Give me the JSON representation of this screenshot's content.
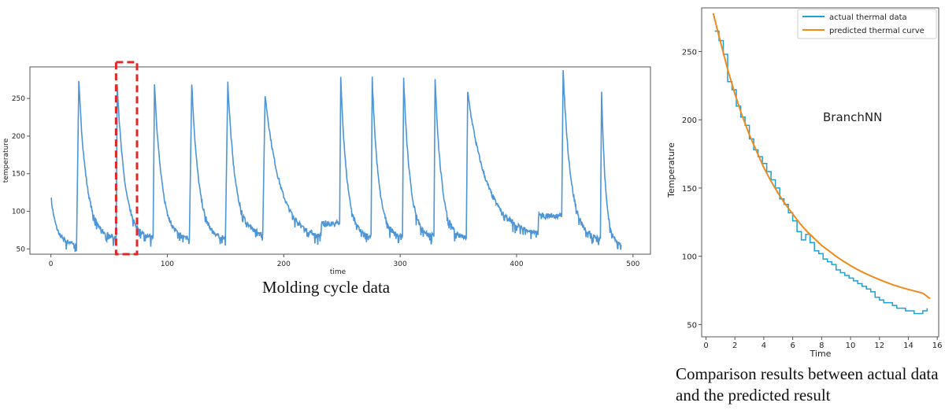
{
  "chart_data": [
    {
      "type": "line",
      "title": "",
      "xlabel": "time",
      "ylabel": "temperature",
      "xlim": [
        -18,
        515
      ],
      "ylim": [
        43,
        292
      ],
      "xticks": [
        0,
        100,
        200,
        300,
        400,
        500
      ],
      "yticks": [
        50,
        100,
        150,
        200,
        250
      ],
      "grid": false,
      "line_color": "#4c95d6",
      "cycles": [
        {
          "start": 0,
          "peak": 120,
          "end": 22,
          "base": 57
        },
        {
          "start": 24,
          "peak": 271,
          "end": 56,
          "base": 64
        },
        {
          "start": 57,
          "peak": 270,
          "end": 88,
          "base": 64
        },
        {
          "start": 89,
          "peak": 271,
          "end": 119,
          "base": 63
        },
        {
          "start": 121,
          "peak": 271,
          "end": 150,
          "base": 63
        },
        {
          "start": 152,
          "peak": 271,
          "end": 182,
          "base": 70
        },
        {
          "start": 184,
          "peak": 255,
          "end": 248,
          "base": 62
        },
        {
          "start": 249,
          "peak": 276,
          "end": 275,
          "base": 65
        },
        {
          "start": 276,
          "peak": 277,
          "end": 302,
          "base": 65
        },
        {
          "start": 303,
          "peak": 277,
          "end": 329,
          "base": 66
        },
        {
          "start": 330,
          "peak": 277,
          "end": 357,
          "base": 63
        },
        {
          "start": 358,
          "peak": 258,
          "end": 439,
          "base": 66
        },
        {
          "start": 440,
          "peak": 285,
          "end": 472,
          "base": 63
        },
        {
          "start": 473,
          "peak": 258,
          "end": 490,
          "base": 55
        }
      ],
      "highlight": {
        "x_range": [
          56,
          74
        ],
        "color": "#e02828",
        "style": "dashed"
      },
      "caption": "Molding cycle data"
    },
    {
      "type": "line",
      "title": "",
      "xlabel": "Time",
      "ylabel": "Temperature",
      "xlim": [
        -0.3,
        16.1
      ],
      "ylim": [
        41,
        282
      ],
      "xticks": [
        0,
        2,
        4,
        6,
        8,
        10,
        12,
        14,
        16
      ],
      "yticks": [
        50,
        100,
        150,
        200,
        250
      ],
      "grid": false,
      "legend_position": "top-right",
      "annotation": "BranchNN",
      "series": [
        {
          "name": "actual thermal data",
          "color": "#1ea1d6",
          "x": [
            0.6,
            0.9,
            1.2,
            1.5,
            1.8,
            2.1,
            2.4,
            2.7,
            3.0,
            3.3,
            3.6,
            3.9,
            4.2,
            4.5,
            4.8,
            5.1,
            5.4,
            5.7,
            6.0,
            6.3,
            6.6,
            6.9,
            7.2,
            7.5,
            7.8,
            8.1,
            8.4,
            8.7,
            9.0,
            9.3,
            9.6,
            9.9,
            10.2,
            10.5,
            10.8,
            11.1,
            11.4,
            11.7,
            12.0,
            12.3,
            12.6,
            12.9,
            13.2,
            13.5,
            13.8,
            14.1,
            14.4,
            14.7,
            15.0,
            15.3
          ],
          "values": [
            265,
            258,
            248,
            228,
            222,
            210,
            202,
            196,
            186,
            178,
            173,
            168,
            162,
            156,
            150,
            142,
            138,
            132,
            126,
            118,
            112,
            116,
            110,
            104,
            102,
            98,
            96,
            94,
            90,
            88,
            86,
            84,
            82,
            80,
            78,
            76,
            74,
            70,
            68,
            66,
            66,
            64,
            62,
            62,
            60,
            60,
            58,
            58,
            60,
            62
          ]
        },
        {
          "name": "predicted thermal curve",
          "color": "#f08a1c",
          "x": [
            0.5,
            1,
            1.5,
            2,
            2.5,
            3,
            3.5,
            4,
            4.5,
            5,
            5.5,
            6,
            6.5,
            7,
            7.5,
            8,
            8.5,
            9,
            9.5,
            10,
            10.5,
            11,
            11.5,
            12,
            12.5,
            13,
            13.5,
            14,
            14.5,
            15,
            15.5
          ],
          "values": [
            278,
            257,
            237,
            219,
            203,
            189,
            177,
            165,
            155,
            146,
            138,
            131,
            124,
            118,
            113,
            108,
            104,
            100,
            96.4,
            93.2,
            90.2,
            87.5,
            85.1,
            82.9,
            80.8,
            78.9,
            77.2,
            75.7,
            74.3,
            73,
            69
          ]
        }
      ],
      "caption": "Comparison results between actual data and the predicted result"
    }
  ]
}
